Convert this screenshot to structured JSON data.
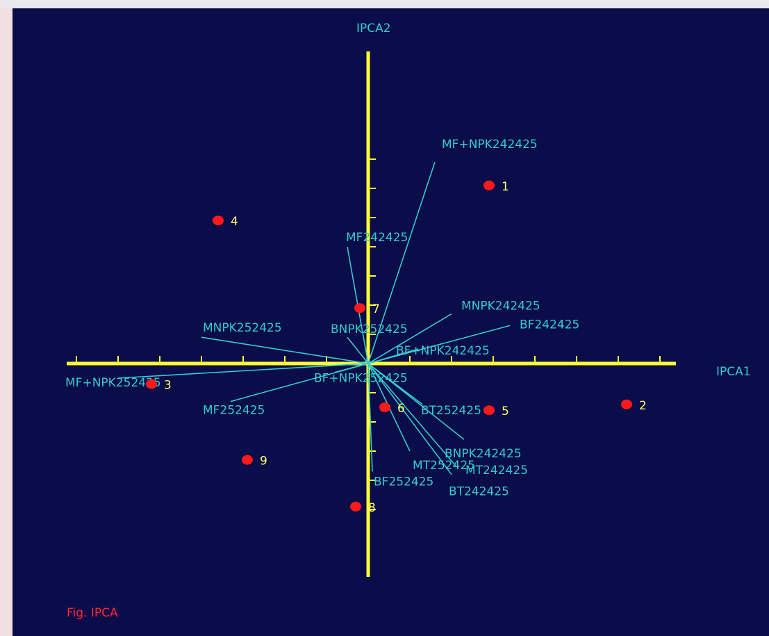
{
  "colors": {
    "background": "#0b0c4a",
    "axis": "#ffff33",
    "vector": "#33cccc",
    "point": "#ff1a1a",
    "point_label": "#ffff66",
    "caption": "#ff2a2a"
  },
  "caption": "Fig. IPCA",
  "chart_data": {
    "type": "scatter",
    "subtype": "biplot",
    "xlabel": "IPCA1",
    "ylabel": "IPCA2",
    "xlim": [
      -7.1,
      7.4
    ],
    "ylim": [
      -5.3,
      7.7
    ],
    "grid": false,
    "points": [
      {
        "label": "1",
        "x": 2.9,
        "y": 6.1
      },
      {
        "label": "2",
        "x": 6.2,
        "y": -1.4
      },
      {
        "label": "3",
        "x": -5.2,
        "y": -0.7
      },
      {
        "label": "4",
        "x": -3.6,
        "y": 4.9
      },
      {
        "label": "5",
        "x": 2.9,
        "y": -1.6
      },
      {
        "label": "6",
        "x": 0.4,
        "y": -1.5
      },
      {
        "label": "7",
        "x": -0.2,
        "y": 1.9
      },
      {
        "label": "8",
        "x": -0.3,
        "y": -4.9
      },
      {
        "label": "9",
        "x": -2.9,
        "y": -3.3
      }
    ],
    "vectors": [
      {
        "label": "MF+NPK242425",
        "x": 1.6,
        "y": 6.9
      },
      {
        "label": "MF242425",
        "x": -0.5,
        "y": 4.0
      },
      {
        "label": "MNPK242425",
        "x": 2.0,
        "y": 1.7
      },
      {
        "label": "BF242425",
        "x": 3.4,
        "y": 1.3
      },
      {
        "label": "BNPK252425",
        "x": -0.5,
        "y": 0.9
      },
      {
        "label": "BF+NPK242425",
        "x": 1.2,
        "y": 0.5
      },
      {
        "label": "MNPK252425",
        "x": -4.0,
        "y": 0.9
      },
      {
        "label": "MF+NPK252425",
        "x": -6.0,
        "y": -0.5
      },
      {
        "label": "BF+NPK252425",
        "x": -0.8,
        "y": -0.3
      },
      {
        "label": "MF252425",
        "x": -3.3,
        "y": -1.3
      },
      {
        "label": "BT252425",
        "x": 1.3,
        "y": -1.4
      },
      {
        "label": "BNPK242425",
        "x": 2.3,
        "y": -2.6
      },
      {
        "label": "MT242425",
        "x": 2.1,
        "y": -3.5
      },
      {
        "label": "MT252425",
        "x": 1.0,
        "y": -3.0
      },
      {
        "label": "BT242425",
        "x": 2.0,
        "y": -3.8
      },
      {
        "label": "BF252425",
        "x": 0.1,
        "y": -3.7
      }
    ]
  }
}
